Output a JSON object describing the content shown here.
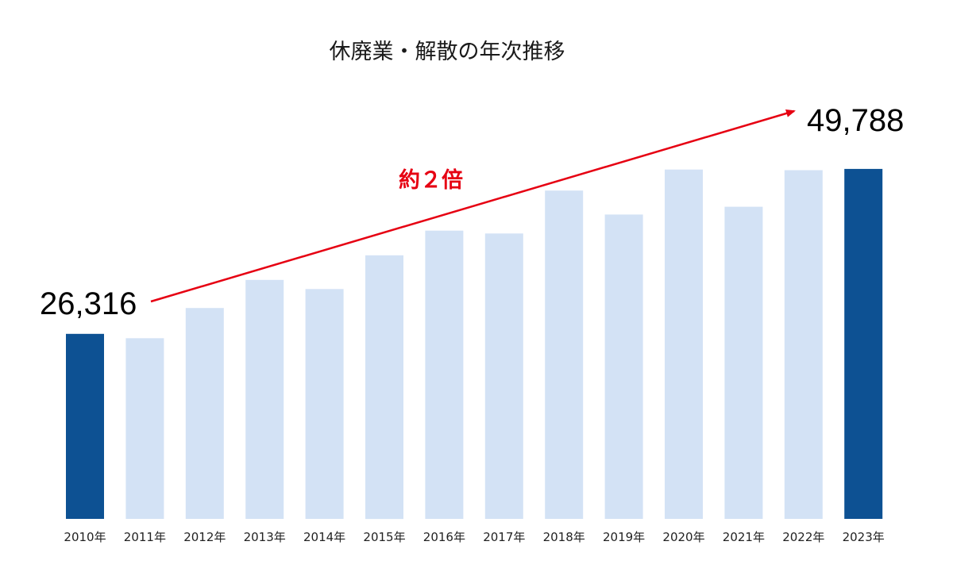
{
  "chart_data": {
    "type": "bar",
    "title": "休廃業・解散の年次推移",
    "xlabel": "",
    "ylabel": "",
    "categories": [
      "2010年",
      "2011年",
      "2012年",
      "2013年",
      "2014年",
      "2015年",
      "2016年",
      "2017年",
      "2018年",
      "2019年",
      "2020年",
      "2021年",
      "2022年",
      "2023年"
    ],
    "values": [
      26316,
      25700,
      30000,
      34000,
      32700,
      37500,
      41000,
      40600,
      46700,
      43300,
      49700,
      44400,
      49600,
      49788
    ],
    "highlighted_categories": [
      "2010年",
      "2023年"
    ],
    "ylim": [
      0,
      50000
    ],
    "grid": false,
    "legend": "none",
    "annotations": {
      "start_value_label": "26,316",
      "end_value_label": "49,788",
      "growth_label": "約２倍"
    },
    "colors": {
      "highlight": "#0d5193",
      "base": "#d3e2f5",
      "arrow": "#e60012"
    }
  }
}
